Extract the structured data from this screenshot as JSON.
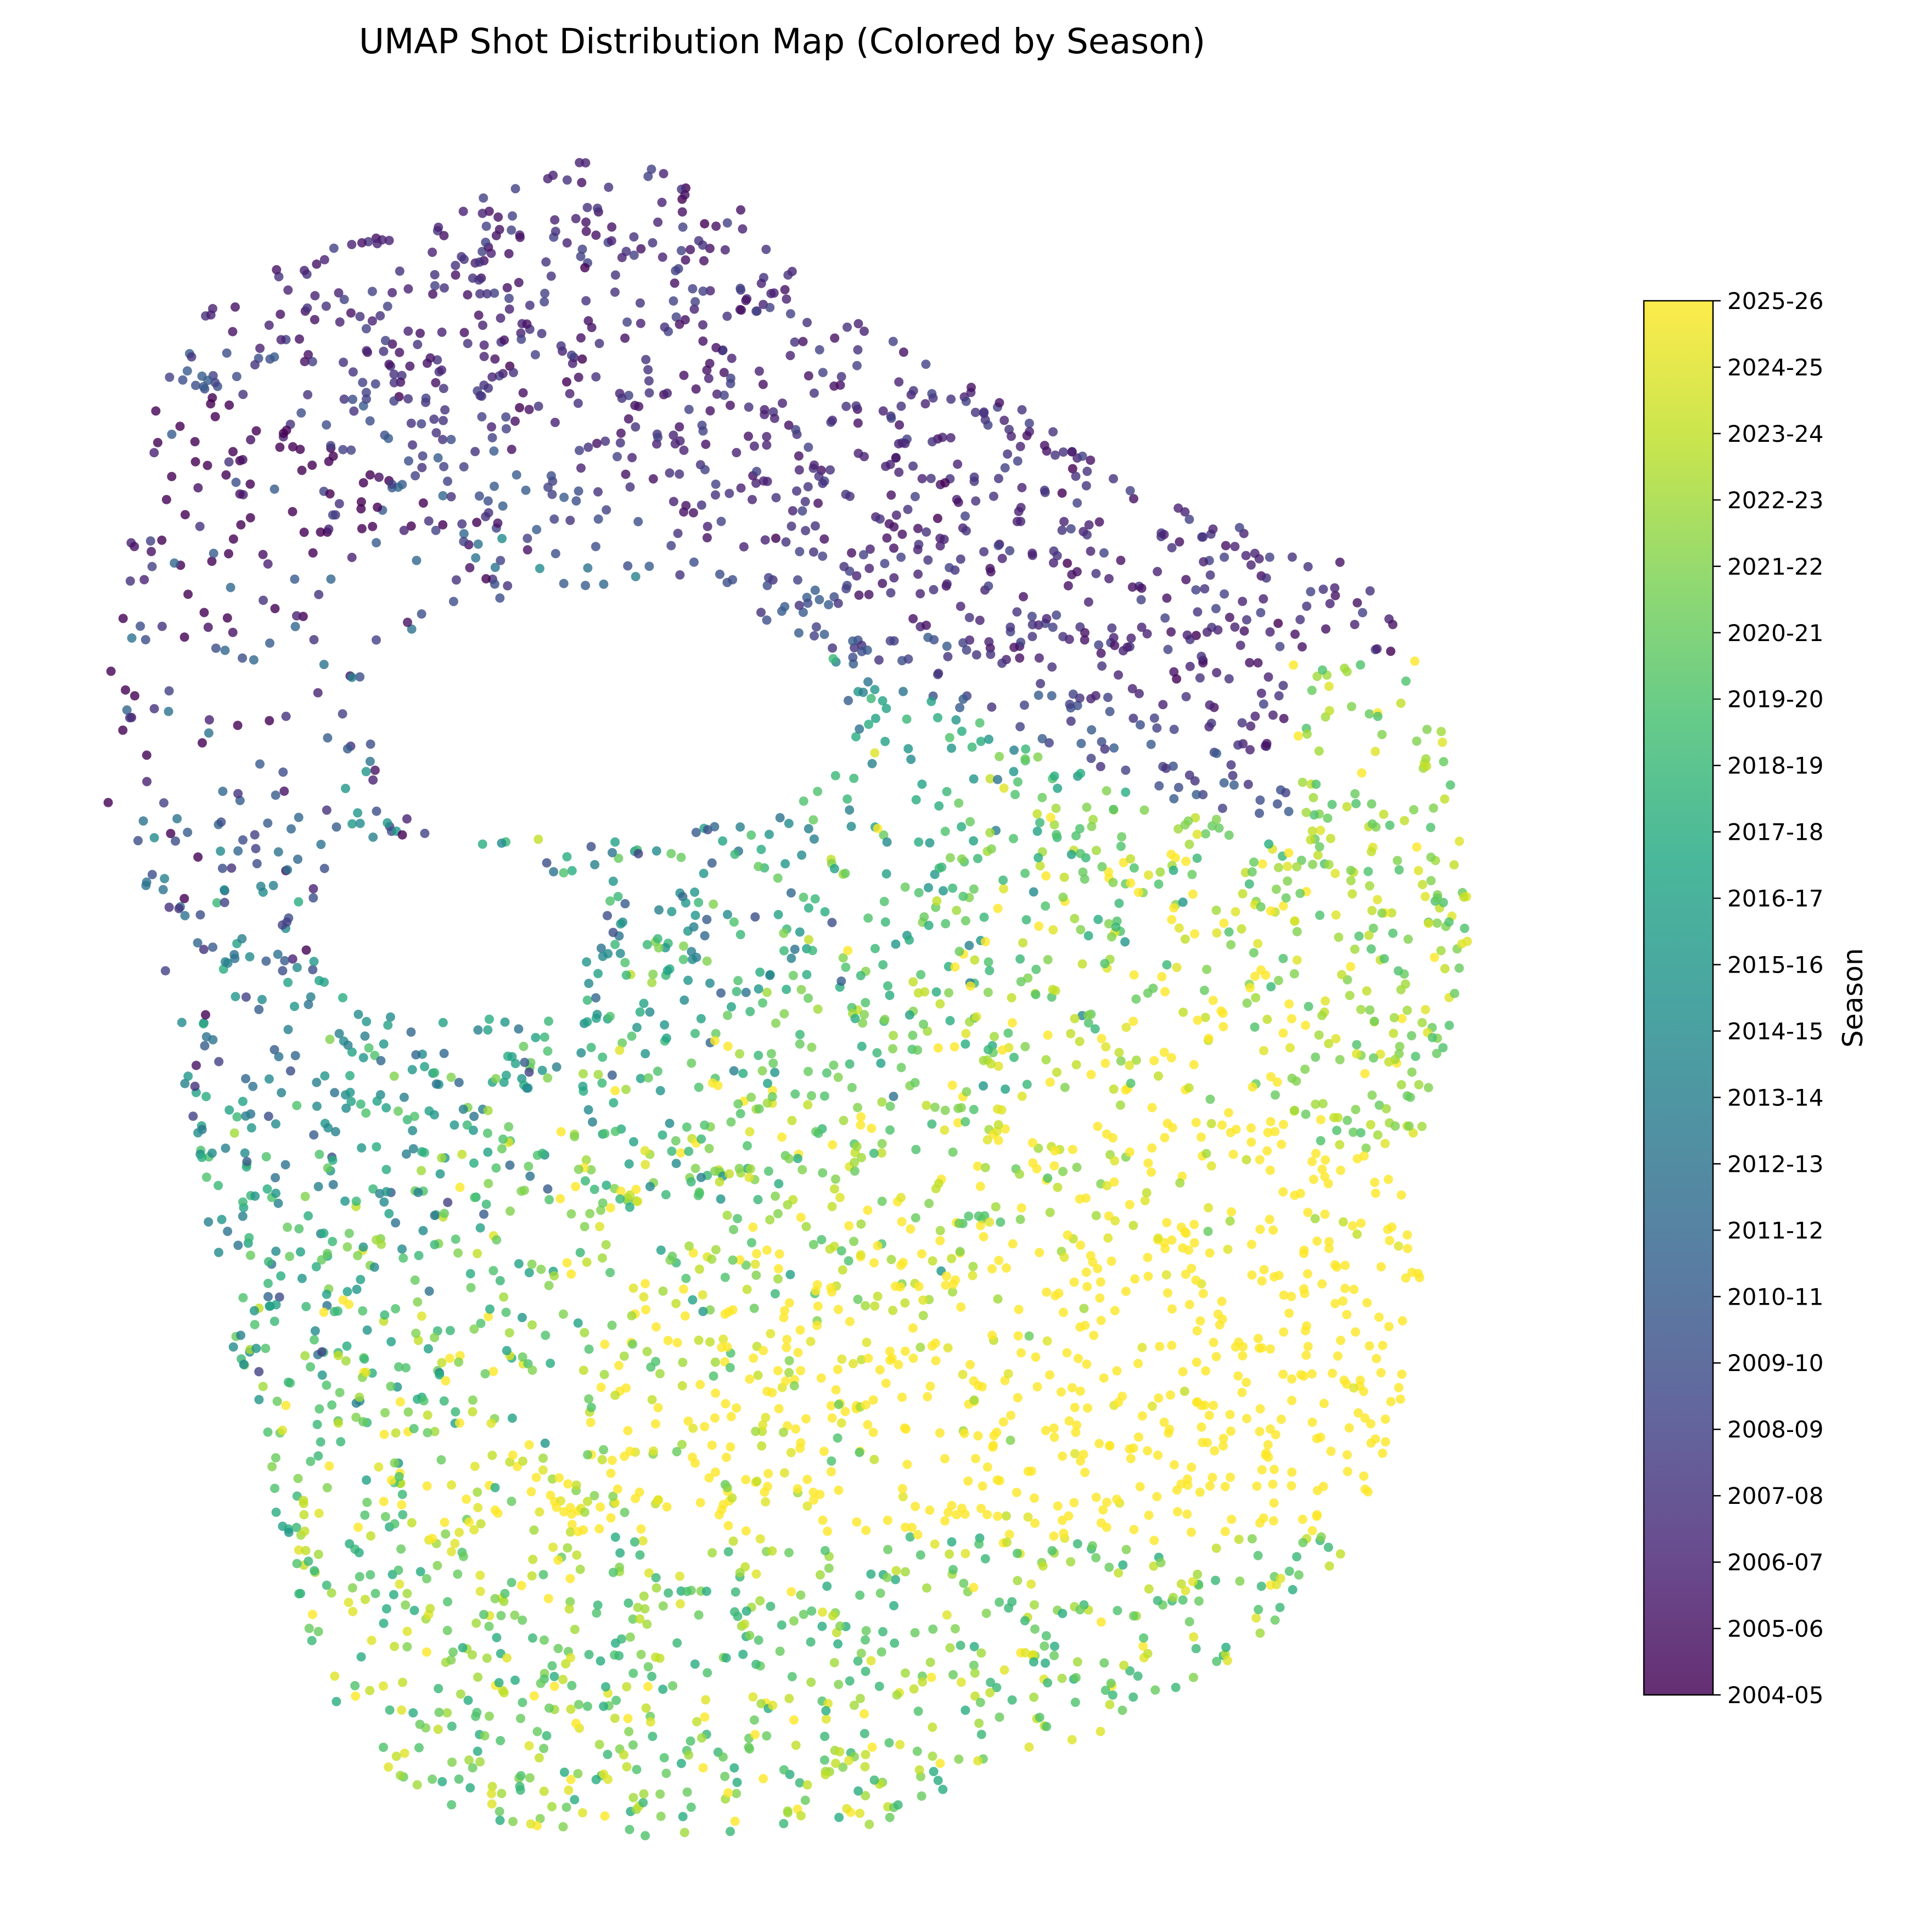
{
  "chart_data": {
    "type": "scatter",
    "title": "UMAP Shot Distribution Map (Colored by Season)",
    "xlabel": "",
    "ylabel": "",
    "axes_visible": false,
    "grid": false,
    "colorbar": {
      "label": "Season",
      "colormap": "viridis",
      "position": "right",
      "ticks": [
        "2004-05",
        "2005-06",
        "2006-07",
        "2007-08",
        "2008-09",
        "2009-10",
        "2010-11",
        "2011-12",
        "2012-13",
        "2013-14",
        "2014-15",
        "2015-16",
        "2016-17",
        "2017-18",
        "2018-19",
        "2019-20",
        "2020-21",
        "2021-22",
        "2022-23",
        "2023-24",
        "2024-25",
        "2025-26"
      ]
    },
    "point_alpha": 0.8,
    "seasons": [
      "2004-05",
      "2005-06",
      "2006-07",
      "2007-08",
      "2008-09",
      "2009-10",
      "2010-11",
      "2011-12",
      "2012-13",
      "2013-14",
      "2014-15",
      "2015-16",
      "2016-17",
      "2017-18",
      "2018-19",
      "2019-20",
      "2020-21",
      "2021-22",
      "2022-23",
      "2023-24",
      "2024-25",
      "2025-26"
    ],
    "cluster_summary": [
      {
        "region": "upper-left band",
        "dominant_seasons": [
          "2004-05",
          "2005-06",
          "2006-07",
          "2007-08",
          "2008-09",
          "2009-10"
        ]
      },
      {
        "region": "center and left-middle",
        "dominant_seasons": [
          "2010-11",
          "2011-12",
          "2012-13",
          "2013-14",
          "2014-15",
          "2015-16",
          "2016-17"
        ]
      },
      {
        "region": "lower and right edge",
        "dominant_seasons": [
          "2017-18",
          "2018-19",
          "2019-20",
          "2020-21",
          "2021-22",
          "2022-23",
          "2023-24",
          "2024-25",
          "2025-26"
        ]
      }
    ]
  },
  "colors": {
    "viridis_stops": [
      "#440154",
      "#482475",
      "#414487",
      "#355f8d",
      "#2a788e",
      "#21918c",
      "#22a884",
      "#44bf70",
      "#7ad151",
      "#bddf26",
      "#fde725"
    ]
  }
}
